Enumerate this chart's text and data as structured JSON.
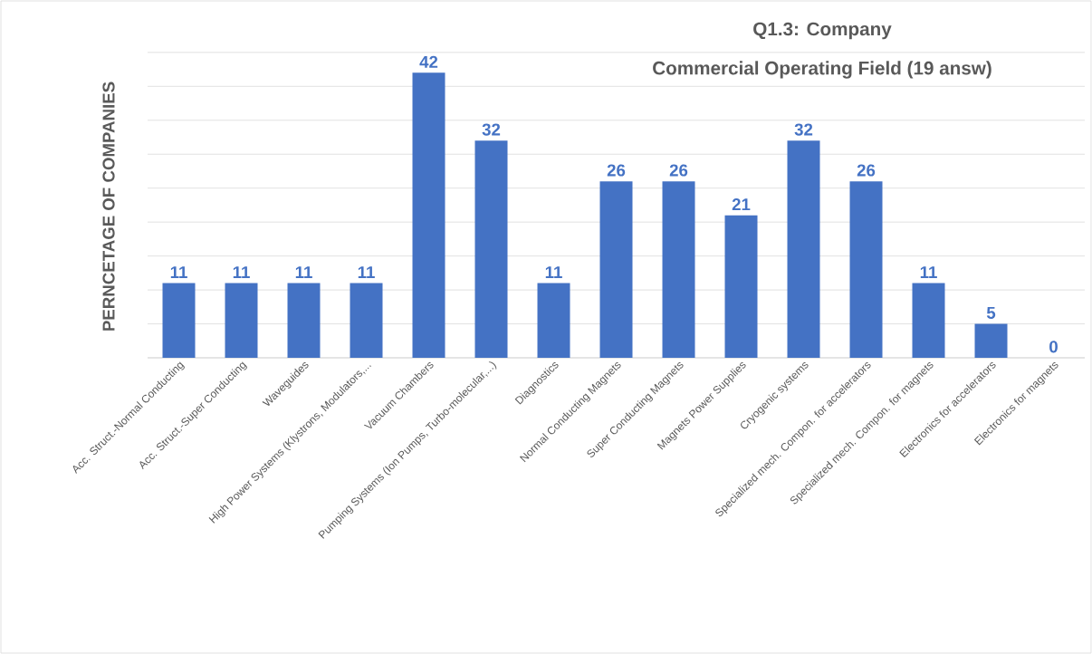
{
  "chart_data": {
    "type": "bar",
    "title": "Q1.3: Company",
    "subtitle": "Commercial Operating Field (19 answ)",
    "ylabel": "PERNCETAGE OF COMPANIES",
    "categories": [
      "Acc. Struct.-Normal Conducting",
      "Acc. Struct.-Super Conducting",
      "Waveguides",
      "High Power Systems (Klystrons, Modulators,...",
      "Vacuum Chambers",
      "Pumping Systems (Ion Pumps, Turbo-molecular,...)",
      "Diagnostics",
      "Normal Conducting Magnets",
      "Super Conducting Magnets",
      "Magnets Power Supplies",
      "Cryogenic systems",
      "Specialized mech. Compon. for accelerators",
      "Specialized mech. Compon. for magnets",
      "Electronics for accelerators",
      "Electronics for magnets"
    ],
    "values": [
      11,
      11,
      11,
      11,
      42,
      32,
      11,
      26,
      26,
      21,
      32,
      26,
      11,
      5,
      0
    ],
    "color": "#4472c4",
    "data_labels": true,
    "grid": "y",
    "tick_labels": "x"
  }
}
